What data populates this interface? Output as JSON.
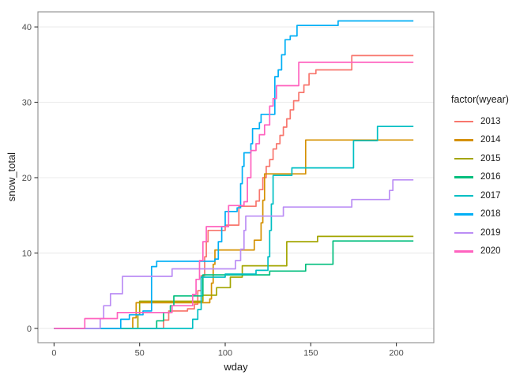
{
  "chart_data": {
    "type": "line",
    "subtype": "step-after",
    "title": "",
    "xlabel": "wday",
    "ylabel": "snow_total",
    "legend_title": "factor(wyear)",
    "legend_position": "right",
    "grid": "horizontal-major-only",
    "x_ticks": [
      0,
      50,
      100,
      150,
      200
    ],
    "y_ticks": [
      0,
      10,
      20,
      30,
      40
    ],
    "xlim": [
      -9.4,
      221.9
    ],
    "ylim": [
      -1.9,
      42.0
    ],
    "series": [
      {
        "name": "2013",
        "color": "#F8766D",
        "points": [
          [
            0,
            0
          ],
          [
            64,
            1.1
          ],
          [
            67,
            2.3
          ],
          [
            78,
            2.6
          ],
          [
            82,
            3.2
          ],
          [
            84,
            5
          ],
          [
            86,
            7
          ],
          [
            88,
            9.5
          ],
          [
            89,
            11.5
          ],
          [
            90,
            13
          ],
          [
            100,
            13.7
          ],
          [
            108,
            16.2
          ],
          [
            118,
            16.9
          ],
          [
            120,
            18.4
          ],
          [
            122,
            20
          ],
          [
            124,
            21.5
          ],
          [
            126,
            22.4
          ],
          [
            128,
            23.8
          ],
          [
            130,
            24.5
          ],
          [
            132,
            25.6
          ],
          [
            134,
            26.7
          ],
          [
            136,
            27.8
          ],
          [
            138,
            29
          ],
          [
            140,
            30.2
          ],
          [
            143,
            31.3
          ],
          [
            146,
            32.3
          ],
          [
            149,
            33.8
          ],
          [
            153,
            34.3
          ],
          [
            174,
            36.2
          ],
          [
            210,
            36.2
          ]
        ]
      },
      {
        "name": "2014",
        "color": "#D59100",
        "points": [
          [
            0,
            0
          ],
          [
            46,
            1.4
          ],
          [
            48,
            3.4
          ],
          [
            91,
            3.9
          ],
          [
            92,
            6
          ],
          [
            93,
            8.5
          ],
          [
            94,
            10.4
          ],
          [
            117,
            11.7
          ],
          [
            121,
            14
          ],
          [
            122,
            17
          ],
          [
            123,
            20.5
          ],
          [
            147,
            25
          ],
          [
            210,
            25
          ]
        ]
      },
      {
        "name": "2015",
        "color": "#A3A500",
        "points": [
          [
            0,
            0
          ],
          [
            49,
            1.8
          ],
          [
            50,
            3.6
          ],
          [
            87,
            4.4
          ],
          [
            95,
            5.4
          ],
          [
            103,
            6.8
          ],
          [
            110,
            8.3
          ],
          [
            136,
            11.5
          ],
          [
            154,
            12.2
          ],
          [
            210,
            12.2
          ]
        ]
      },
      {
        "name": "2016",
        "color": "#00BE7D",
        "points": [
          [
            0,
            0
          ],
          [
            60,
            1
          ],
          [
            64,
            2.1
          ],
          [
            68,
            3
          ],
          [
            70,
            4.3
          ],
          [
            87,
            7.1
          ],
          [
            126,
            7.6
          ],
          [
            147,
            8.5
          ],
          [
            163,
            11.6
          ],
          [
            210,
            11.6
          ]
        ]
      },
      {
        "name": "2017",
        "color": "#00BFC4",
        "points": [
          [
            0,
            0
          ],
          [
            81,
            1.2
          ],
          [
            84,
            2.5
          ],
          [
            86,
            6.8
          ],
          [
            100,
            7.2
          ],
          [
            118,
            7.7
          ],
          [
            125,
            9.5
          ],
          [
            126,
            13
          ],
          [
            127,
            16.5
          ],
          [
            128,
            20.3
          ],
          [
            139,
            21.3
          ],
          [
            175,
            24.9
          ],
          [
            189,
            26.8
          ],
          [
            210,
            26.8
          ]
        ]
      },
      {
        "name": "2018",
        "color": "#00AFF5",
        "points": [
          [
            0,
            0
          ],
          [
            39,
            1.2
          ],
          [
            44,
            1.8
          ],
          [
            52,
            2.3
          ],
          [
            57,
            8.2
          ],
          [
            60,
            8.9
          ],
          [
            94,
            9.2
          ],
          [
            96,
            11.5
          ],
          [
            98,
            13.5
          ],
          [
            100,
            15.5
          ],
          [
            107,
            16
          ],
          [
            109,
            19.2
          ],
          [
            110,
            21.5
          ],
          [
            111,
            23.3
          ],
          [
            115,
            24.5
          ],
          [
            116,
            26.5
          ],
          [
            120,
            27.3
          ],
          [
            121,
            28.4
          ],
          [
            129,
            33.4
          ],
          [
            131,
            34.3
          ],
          [
            133,
            36.3
          ],
          [
            135,
            38.3
          ],
          [
            138,
            38.8
          ],
          [
            142,
            40.2
          ],
          [
            166,
            40.8
          ],
          [
            210,
            40.8
          ]
        ]
      },
      {
        "name": "2019",
        "color": "#BB8DF5",
        "points": [
          [
            0,
            0
          ],
          [
            27,
            1.3
          ],
          [
            29,
            3
          ],
          [
            33,
            4.6
          ],
          [
            40,
            6.9
          ],
          [
            69,
            7.9
          ],
          [
            106,
            9
          ],
          [
            109,
            10.5
          ],
          [
            111,
            13
          ],
          [
            112,
            14.9
          ],
          [
            134,
            16.1
          ],
          [
            174,
            17.1
          ],
          [
            196,
            18.3
          ],
          [
            198,
            19.7
          ],
          [
            210,
            19.7
          ]
        ]
      },
      {
        "name": "2020",
        "color": "#FF62BF",
        "points": [
          [
            0,
            0
          ],
          [
            18,
            1.3
          ],
          [
            37,
            2.1
          ],
          [
            69,
            3
          ],
          [
            81,
            4.5
          ],
          [
            83,
            6.5
          ],
          [
            85,
            9
          ],
          [
            87,
            11.5
          ],
          [
            89,
            13.5
          ],
          [
            102,
            16.3
          ],
          [
            111,
            16.8
          ],
          [
            113,
            20
          ],
          [
            115,
            23.6
          ],
          [
            118,
            24.5
          ],
          [
            120,
            25.7
          ],
          [
            123,
            27
          ],
          [
            126,
            29.5
          ],
          [
            128,
            30.5
          ],
          [
            130,
            32.2
          ],
          [
            143,
            35.3
          ],
          [
            210,
            35.3
          ]
        ]
      }
    ]
  },
  "colors": {
    "background": "#FFFFFF",
    "panel_background": "#FFFFFF",
    "panel_border": "#8C8C8C",
    "gridline": "#EBEBEB",
    "tick_mark": "#333333",
    "tick_label": "#4D4D4D",
    "axis_title": "#1A1A1A",
    "legend_text": "#1A1A1A"
  }
}
